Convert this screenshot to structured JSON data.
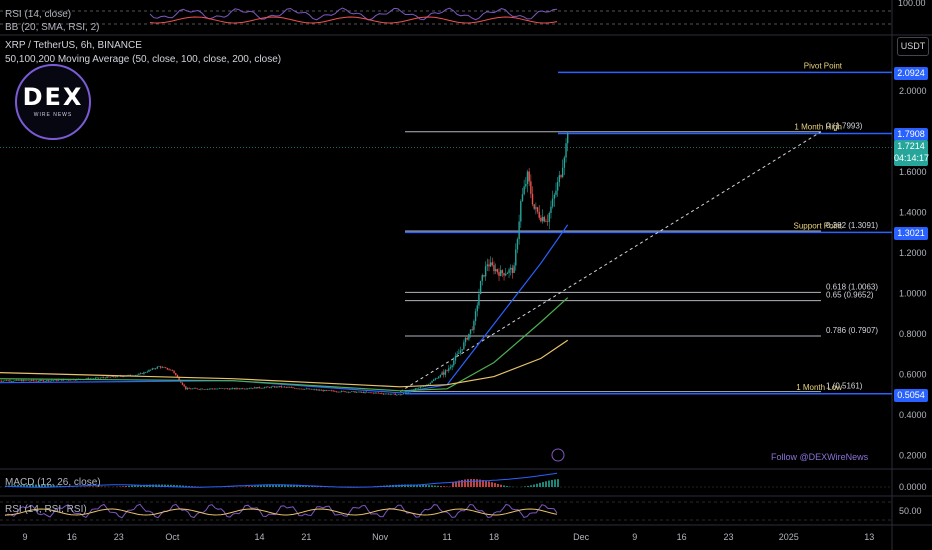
{
  "header": {
    "symbol": "XRP / TetherUS, 6h, BINANCE",
    "indicator": "50,100,200 Moving Average (50, close, 100, close, 200, close)",
    "top_rsi": "RSI (14, close)",
    "top_bb": "BB (20, SMA, RSI, 2)",
    "currency": "USDT"
  },
  "logo": {
    "text": "DEX",
    "sub": "WIRE NEWS"
  },
  "watermark": "Follow @DEXWireNews",
  "colors": {
    "background": "#000000",
    "up": "#26a69a",
    "down": "#ef5350",
    "ma50": "#2962ff",
    "ma100": "#4caf50",
    "ma200": "#e8c36a",
    "fib": "#b2b5be",
    "level": "#2962ff",
    "label": "#e8d27a"
  },
  "chart_data": {
    "type": "candlestick",
    "symbol": "XRP / TetherUS",
    "interval": "6h",
    "exchange": "BINANCE",
    "ylim": [
      0.12,
      2.2
    ],
    "yticks": [
      "2.0000",
      "1.8000",
      "1.6000",
      "1.4000",
      "1.2000",
      "1.0000",
      "0.8000",
      "0.6000",
      "0.4000",
      "0.2000"
    ],
    "xticks": [
      "9",
      "16",
      "23",
      "Oct",
      "14",
      "21",
      "Nov",
      "11",
      "18",
      "Dec",
      "9",
      "16",
      "23",
      "2025",
      "13"
    ],
    "price_path": [
      [
        "Sep 5",
        0.57
      ],
      [
        "Sep 12",
        0.57
      ],
      [
        "Sep 19",
        0.58
      ],
      [
        "Sep 26",
        0.6
      ],
      [
        "Sep 29",
        0.64
      ],
      [
        "Oct 1",
        0.62
      ],
      [
        "Oct 3",
        0.53
      ],
      [
        "Oct 10",
        0.53
      ],
      [
        "Oct 17",
        0.54
      ],
      [
        "Oct 24",
        0.52
      ],
      [
        "Oct 31",
        0.51
      ],
      [
        "Nov 4",
        0.5
      ],
      [
        "Nov 8",
        0.55
      ],
      [
        "Nov 11",
        0.62
      ],
      [
        "Nov 13",
        0.72
      ],
      [
        "Nov 15",
        0.85
      ],
      [
        "Nov 16",
        1.05
      ],
      [
        "Nov 17",
        1.15
      ],
      [
        "Nov 19",
        1.1
      ],
      [
        "Nov 21",
        1.12
      ],
      [
        "Nov 22",
        1.45
      ],
      [
        "Nov 23",
        1.58
      ],
      [
        "Nov 24",
        1.42
      ],
      [
        "Nov 25",
        1.38
      ],
      [
        "Nov 26",
        1.37
      ],
      [
        "Nov 27",
        1.48
      ],
      [
        "Nov 28",
        1.6
      ],
      [
        "Nov 29",
        1.79
      ]
    ],
    "moving_averages": [
      {
        "name": "MA 50",
        "path": [
          [
            "Sep 5",
            0.56
          ],
          [
            "Oct 10",
            0.57
          ],
          [
            "Nov 4",
            0.51
          ],
          [
            "Nov 11",
            0.55
          ],
          [
            "Nov 18",
            0.85
          ],
          [
            "Nov 25",
            1.15
          ],
          [
            "Nov 29",
            1.34
          ]
        ]
      },
      {
        "name": "MA 100",
        "path": [
          [
            "Sep 5",
            0.58
          ],
          [
            "Oct 10",
            0.57
          ],
          [
            "Nov 4",
            0.52
          ],
          [
            "Nov 11",
            0.53
          ],
          [
            "Nov 18",
            0.66
          ],
          [
            "Nov 25",
            0.86
          ],
          [
            "Nov 29",
            0.98
          ]
        ]
      },
      {
        "name": "MA 200",
        "path": [
          [
            "Sep 5",
            0.61
          ],
          [
            "Oct 10",
            0.58
          ],
          [
            "Nov 4",
            0.54
          ],
          [
            "Nov 11",
            0.55
          ],
          [
            "Nov 18",
            0.59
          ],
          [
            "Nov 25",
            0.68
          ],
          [
            "Nov 29",
            0.77
          ]
        ]
      }
    ],
    "levels": [
      {
        "label": "Pivot Point",
        "price": 2.0924,
        "value_label": "2.0924"
      },
      {
        "label": "1 Month High",
        "price": 1.7908,
        "value_label": "1.7908"
      },
      {
        "label": "Support Point",
        "price": 1.3021,
        "value_label": "1.3021"
      },
      {
        "label": "1 Month Low",
        "price": 0.5054,
        "value_label": "0.5054"
      }
    ],
    "fibonacci": [
      {
        "ratio": "0",
        "price": 1.7993,
        "label": "0 (1.7993)"
      },
      {
        "ratio": "0.382",
        "price": 1.3091,
        "label": "0.382 (1.3091)"
      },
      {
        "ratio": "0.618",
        "price": 1.0063,
        "label": "0.618 (1.0063)"
      },
      {
        "ratio": "0.65",
        "price": 0.9652,
        "label": "0.65 (0.9652)"
      },
      {
        "ratio": "0.786",
        "price": 0.7907,
        "label": "0.786 (0.7907)"
      },
      {
        "ratio": "1",
        "price": 0.5161,
        "label": "1 (0.5161)"
      }
    ],
    "current_price": {
      "value": 1.7214,
      "label": "1.7214",
      "countdown": "04:14:17"
    },
    "indicators": {
      "macd": {
        "label": "MACD (12, 26, close)",
        "axis_label": "0.0000"
      },
      "rsi_bottom": {
        "label": "RSI (14, RSI, RSI)",
        "axis_label": "50.00"
      },
      "rsi_top": {
        "axis_label": "100.00"
      }
    }
  }
}
